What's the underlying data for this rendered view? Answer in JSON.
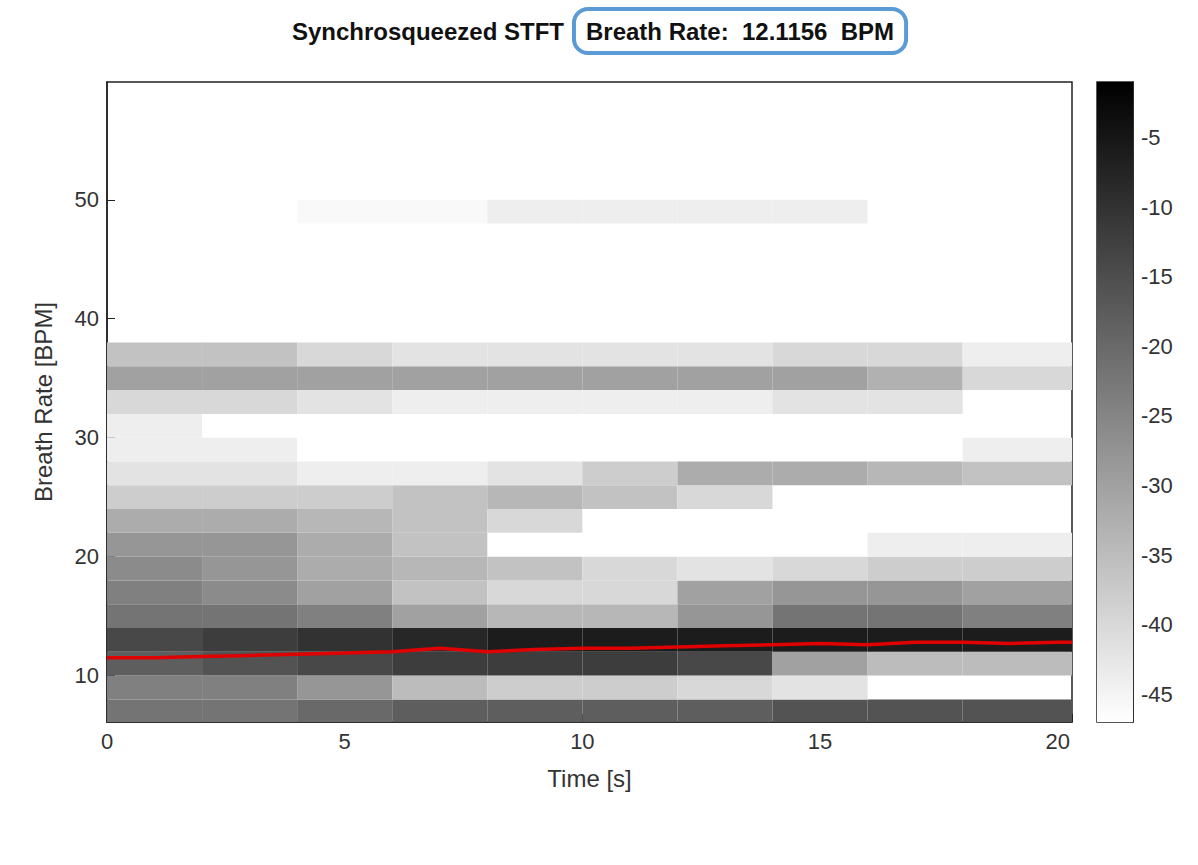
{
  "chart_data": {
    "type": "heatmap",
    "title": "Synchrosqueezed STFT",
    "annotation": "Breath Rate:  12.1156  BPM",
    "x_label": "Time [s]",
    "y_label": "Breath Rate [BPM]",
    "xlim": [
      0,
      20.3
    ],
    "xticks": [
      0,
      5,
      10,
      15,
      20
    ],
    "ylim": [
      6.1,
      59.9
    ],
    "yticks": [
      10,
      20,
      30,
      40,
      50
    ],
    "grid": false,
    "cells": {
      "x_edges": [
        0,
        2,
        4,
        6,
        8,
        10,
        12,
        14,
        16,
        18,
        20.3
      ],
      "y_edges": [
        6,
        8,
        10,
        12,
        14,
        16,
        18,
        20,
        22,
        24,
        26,
        28,
        30,
        32,
        34,
        36,
        38,
        40,
        42,
        44,
        46,
        48,
        50,
        52,
        54,
        56,
        58,
        60
      ],
      "values": [
        [
          -22,
          -22,
          -20,
          -18,
          -18,
          -18,
          -18,
          -16,
          -16,
          -16
        ],
        [
          -24,
          -24,
          -28,
          -35,
          -38,
          -38,
          -40,
          -42,
          null,
          null
        ],
        [
          -18,
          -16,
          -14,
          -12,
          -12,
          -12,
          -14,
          -30,
          -35,
          -35
        ],
        [
          -14,
          -12,
          -10,
          -8,
          -6,
          -6,
          -6,
          -6,
          -6,
          -6
        ],
        [
          -22,
          -22,
          -24,
          -30,
          -34,
          -34,
          -28,
          -22,
          -22,
          -24
        ],
        [
          -24,
          -26,
          -30,
          -36,
          -40,
          -40,
          -30,
          -28,
          -28,
          -30
        ],
        [
          -26,
          -28,
          -32,
          -34,
          -36,
          -40,
          -42,
          -40,
          -38,
          -38
        ],
        [
          -28,
          -28,
          -32,
          -36,
          null,
          null,
          null,
          null,
          -44,
          -44
        ],
        [
          -32,
          -32,
          -34,
          -36,
          -40,
          null,
          null,
          null,
          null,
          null
        ],
        [
          -38,
          -38,
          -38,
          -36,
          -34,
          -36,
          -40,
          null,
          null,
          null
        ],
        [
          -42,
          -42,
          -44,
          -44,
          -42,
          -38,
          -32,
          -32,
          -34,
          -36
        ],
        [
          -44,
          -44,
          null,
          null,
          null,
          null,
          null,
          null,
          null,
          -44
        ],
        [
          -44,
          null,
          null,
          null,
          null,
          null,
          null,
          null,
          null,
          null
        ],
        [
          -40,
          -40,
          -42,
          -44,
          -44,
          -44,
          -44,
          -42,
          -42,
          null
        ],
        [
          -30,
          -30,
          -30,
          -30,
          -30,
          -30,
          -30,
          -30,
          -33,
          -40
        ],
        [
          -36,
          -36,
          -40,
          -42,
          -42,
          -42,
          -42,
          -40,
          -40,
          -44
        ],
        [
          null,
          null,
          null,
          null,
          null,
          null,
          null,
          null,
          null,
          null
        ],
        [
          null,
          null,
          null,
          null,
          null,
          null,
          null,
          null,
          null,
          null
        ],
        [
          null,
          null,
          null,
          null,
          null,
          null,
          null,
          null,
          null,
          null
        ],
        [
          null,
          null,
          null,
          null,
          null,
          null,
          null,
          null,
          null,
          null
        ],
        [
          null,
          null,
          null,
          null,
          null,
          null,
          null,
          null,
          null,
          null
        ],
        [
          null,
          null,
          -46,
          -46,
          -44,
          -44,
          -44,
          -44,
          null,
          null
        ],
        [
          null,
          null,
          null,
          null,
          null,
          null,
          null,
          null,
          null,
          null
        ],
        [
          null,
          null,
          null,
          null,
          null,
          null,
          null,
          null,
          null,
          null
        ],
        [
          null,
          null,
          null,
          null,
          null,
          null,
          null,
          null,
          null,
          null
        ],
        [
          null,
          null,
          null,
          null,
          null,
          null,
          null,
          null,
          null,
          null
        ],
        [
          null,
          null,
          null,
          null,
          null,
          null,
          null,
          null,
          null,
          null
        ]
      ]
    },
    "colorbar": {
      "range": [
        -47,
        -1
      ],
      "ticks": [
        -45,
        -40,
        -35,
        -30,
        -25,
        -20,
        -15,
        -10,
        -5
      ]
    },
    "series": [
      {
        "type": "line",
        "color": "#e00000",
        "line_style": "solid",
        "x": [
          0,
          1,
          2,
          3,
          4,
          5,
          6,
          7,
          8,
          9,
          10,
          11,
          12,
          13,
          14,
          15,
          16,
          17,
          18,
          19,
          20,
          20.3
        ],
        "values": [
          11.5,
          11.5,
          11.6,
          11.7,
          11.8,
          11.9,
          12.0,
          12.3,
          12.0,
          12.2,
          12.3,
          12.3,
          12.4,
          12.5,
          12.6,
          12.7,
          12.6,
          12.8,
          12.8,
          12.7,
          12.8,
          12.8
        ]
      }
    ]
  }
}
